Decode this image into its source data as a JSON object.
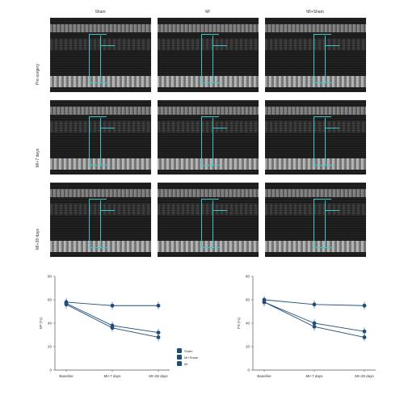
{
  "figure": {
    "columns": [
      "Sham",
      "MI",
      "MI+Sham"
    ],
    "rows": [
      "Pre-surgery",
      "MI+7 days",
      "MI+28 days"
    ]
  },
  "chart_data": [
    {
      "type": "line",
      "categories": [
        "Baseline",
        "MI+7 days",
        "MI+28 days"
      ],
      "ylabel": "EF (%)",
      "ylim": [
        0,
        80
      ],
      "yticks": [
        0,
        20,
        40,
        60,
        80
      ],
      "series": [
        {
          "values": [
            58,
            55,
            55
          ]
        },
        {
          "values": [
            57,
            38,
            32
          ]
        },
        {
          "values": [
            56,
            36,
            28
          ]
        }
      ]
    },
    {
      "type": "line",
      "categories": [
        "Baseline",
        "MI+7 days",
        "MI+28 days"
      ],
      "ylabel": "FS (%)",
      "ylim": [
        0,
        80
      ],
      "yticks": [
        0,
        20,
        40,
        60,
        80
      ],
      "series": [
        {
          "values": [
            60,
            56,
            55
          ]
        },
        {
          "values": [
            58,
            40,
            33
          ]
        },
        {
          "values": [
            58,
            37,
            28
          ]
        }
      ]
    }
  ],
  "legend": [
    "Sham",
    "MI+Sham",
    "MI"
  ],
  "colors": {
    "series": "#1f4e79",
    "marker": "#3fc6c6"
  }
}
